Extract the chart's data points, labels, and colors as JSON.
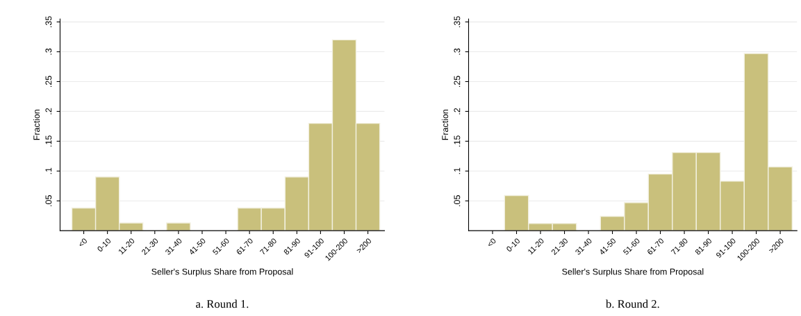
{
  "chart_data": [
    {
      "type": "bar",
      "xlabel": "Seller's Surplus Share from Proposal",
      "ylabel": "Fraction",
      "categories": [
        "<0",
        "0-10",
        "11-20",
        "21-30",
        "31-40",
        "41-50",
        "51-60",
        "61-70",
        "71-80",
        "81-90",
        "91-100",
        "100-200",
        ">200"
      ],
      "values": [
        0.038,
        0.09,
        0.013,
        0,
        0.013,
        0,
        0,
        0.038,
        0.038,
        0.09,
        0.18,
        0.32,
        0.18
      ],
      "color": "#c9c07c",
      "ylim": [
        0,
        0.355
      ],
      "yticks": [
        {
          "value": 0.05,
          "label": ".05"
        },
        {
          "value": 0.1,
          "label": ".1"
        },
        {
          "value": 0.15,
          "label": ".15"
        },
        {
          "value": 0.2,
          "label": ".2"
        },
        {
          "value": 0.25,
          "label": ".25"
        },
        {
          "value": 0.3,
          "label": ".3"
        },
        {
          "value": 0.35,
          "label": ".35"
        }
      ],
      "grid": "y",
      "annotations": [
        "a. Round 1."
      ]
    },
    {
      "type": "bar",
      "xlabel": "Seller's Surplus Share from Proposal",
      "ylabel": "Fraction",
      "categories": [
        "<0",
        "0-10",
        "11-20",
        "21-30",
        "31-40",
        "41-50",
        "51-60",
        "61-70",
        "71-80",
        "81-90",
        "91-100",
        "100-200",
        ">200"
      ],
      "values": [
        0,
        0.059,
        0.012,
        0.012,
        0,
        0.024,
        0.047,
        0.095,
        0.131,
        0.131,
        0.083,
        0.297,
        0.107
      ],
      "color": "#c9c07c",
      "ylim": [
        0,
        0.355
      ],
      "yticks": [
        {
          "value": 0.05,
          "label": ".05"
        },
        {
          "value": 0.1,
          "label": ".1"
        },
        {
          "value": 0.15,
          "label": ".15"
        },
        {
          "value": 0.2,
          "label": ".2"
        },
        {
          "value": 0.25,
          "label": ".25"
        },
        {
          "value": 0.3,
          "label": ".3"
        },
        {
          "value": 0.35,
          "label": ".35"
        }
      ],
      "grid": "y",
      "annotations": [
        "b. Round 2."
      ]
    }
  ]
}
